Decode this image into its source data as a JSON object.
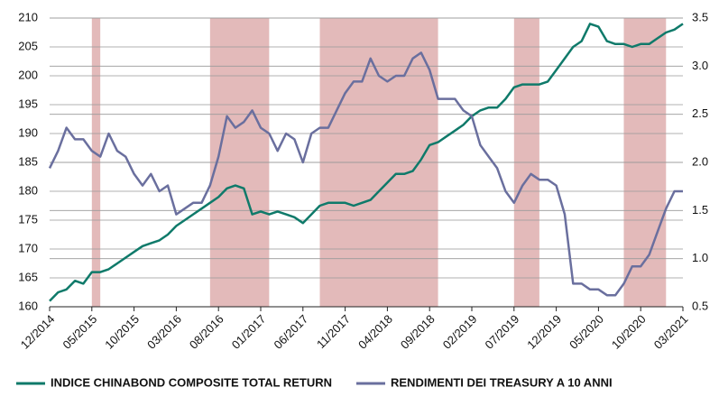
{
  "chart_data": {
    "type": "line",
    "x": [
      "12/2014",
      "01/2015",
      "02/2015",
      "03/2015",
      "04/2015",
      "05/2015",
      "06/2015",
      "07/2015",
      "08/2015",
      "09/2015",
      "10/2015",
      "11/2015",
      "12/2015",
      "01/2016",
      "02/2016",
      "03/2016",
      "04/2016",
      "05/2016",
      "06/2016",
      "07/2016",
      "08/2016",
      "09/2016",
      "10/2016",
      "11/2016",
      "12/2016",
      "01/2017",
      "02/2017",
      "03/2017",
      "04/2017",
      "05/2017",
      "06/2017",
      "07/2017",
      "08/2017",
      "09/2017",
      "10/2017",
      "11/2017",
      "12/2017",
      "01/2018",
      "02/2018",
      "03/2018",
      "04/2018",
      "05/2018",
      "06/2018",
      "07/2018",
      "08/2018",
      "09/2018",
      "10/2018",
      "11/2018",
      "12/2018",
      "01/2019",
      "02/2019",
      "03/2019",
      "04/2019",
      "05/2019",
      "06/2019",
      "07/2019",
      "08/2019",
      "09/2019",
      "10/2019",
      "11/2019",
      "12/2019",
      "01/2020",
      "02/2020",
      "03/2020",
      "04/2020",
      "05/2020",
      "06/2020",
      "07/2020",
      "08/2020",
      "09/2020",
      "10/2020",
      "11/2020",
      "12/2020",
      "01/2021",
      "02/2021",
      "03/2021"
    ],
    "xticks": [
      "12/2014",
      "05/2015",
      "10/2015",
      "03/2016",
      "08/2016",
      "01/2017",
      "06/2017",
      "11/2017",
      "04/2018",
      "09/2018",
      "02/2019",
      "07/2019",
      "12/2019",
      "05/2020",
      "10/2020",
      "03/2021"
    ],
    "series": [
      {
        "name": "INDICE CHINABOND COMPOSITE TOTAL RETURN",
        "color": "#0f7a6a",
        "axis": "y",
        "values": [
          161,
          162.5,
          163,
          164.5,
          164,
          166,
          166,
          166.5,
          167.5,
          168.5,
          169.5,
          170.5,
          171,
          171.5,
          172.5,
          174,
          175,
          176,
          177,
          178,
          179,
          180.5,
          181,
          180.5,
          176,
          176.5,
          176,
          176.5,
          176,
          175.5,
          174.5,
          176,
          177.5,
          178,
          178,
          178,
          177.5,
          178,
          178.5,
          180,
          181.5,
          183,
          183,
          183.5,
          185.5,
          188,
          188.5,
          189.5,
          190.5,
          191.5,
          193,
          194,
          194.5,
          194.5,
          196,
          198,
          198.5,
          198.5,
          198.5,
          199,
          201,
          203,
          205,
          206,
          209,
          208.5,
          206,
          205.5,
          205.5,
          205,
          205.5,
          205.5,
          206.5,
          207.5,
          208,
          209
        ]
      },
      {
        "name": "RENDIMENTI DEI TREASURY A 10 ANNI",
        "color": "#6a6f9e",
        "axis": "y2",
        "values": [
          1.94,
          2.12,
          2.36,
          2.24,
          2.24,
          2.12,
          2.06,
          2.3,
          2.12,
          2.06,
          1.88,
          1.76,
          1.88,
          1.7,
          1.76,
          1.46,
          1.52,
          1.58,
          1.58,
          1.76,
          2.06,
          2.48,
          2.36,
          2.42,
          2.54,
          2.36,
          2.3,
          2.12,
          2.3,
          2.24,
          2.0,
          2.3,
          2.36,
          2.36,
          2.54,
          2.72,
          2.84,
          2.84,
          3.08,
          2.9,
          2.84,
          2.9,
          2.9,
          3.08,
          3.14,
          2.96,
          2.66,
          2.66,
          2.66,
          2.54,
          2.48,
          2.18,
          2.06,
          1.94,
          1.7,
          1.58,
          1.76,
          1.88,
          1.82,
          1.82,
          1.76,
          1.46,
          0.74,
          0.74,
          0.68,
          0.68,
          0.62,
          0.62,
          0.74,
          0.92,
          0.92,
          1.04,
          1.28,
          1.52,
          1.7,
          1.7
        ]
      }
    ],
    "ylim": [
      160,
      210
    ],
    "yticks": [
      160,
      165,
      170,
      175,
      180,
      185,
      190,
      195,
      200,
      205,
      210
    ],
    "y2lim": [
      0.5,
      3.5
    ],
    "y2ticks": [
      0.5,
      {
        "value": 1,
        "label": "1.0"
      },
      1.5,
      {
        "value": 2,
        "label": "2.0"
      },
      2.5,
      {
        "value": 3,
        "label": "3.0"
      },
      3.5
    ],
    "shaded_periods": [
      {
        "start": "05/2015",
        "end": "06/2015"
      },
      {
        "start": "07/2016",
        "end": "02/2017"
      },
      {
        "start": "08/2017",
        "end": "10/2018"
      },
      {
        "start": "07/2019",
        "end": "10/2019"
      },
      {
        "start": "08/2020",
        "end": "01/2021"
      }
    ],
    "shade_color": "#d9a3a3",
    "grid": true
  }
}
